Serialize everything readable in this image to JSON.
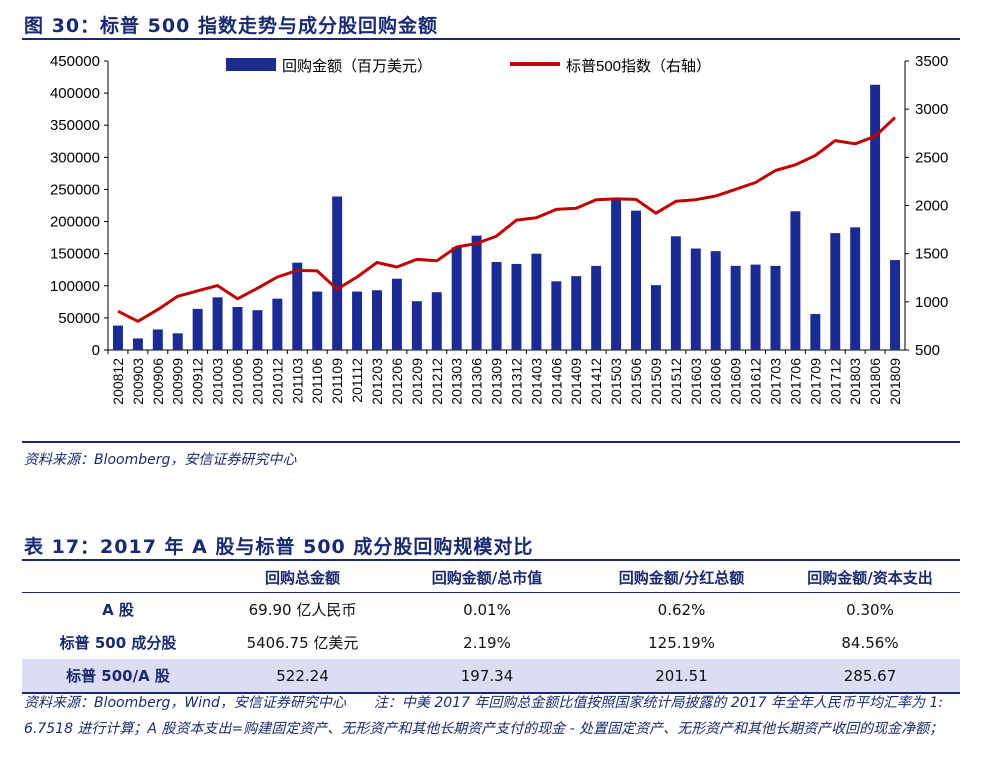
{
  "figure_title": "图 30：标普 500 指数走势与成分股回购金额",
  "figure_source": "资料来源：Bloomberg，安信证券研究中心",
  "chart_data": {
    "type": "bar",
    "categories": [
      "200812",
      "200903",
      "200906",
      "200909",
      "200912",
      "201003",
      "201006",
      "201009",
      "201012",
      "201103",
      "201106",
      "201109",
      "201112",
      "201203",
      "201206",
      "201209",
      "201212",
      "201303",
      "201306",
      "201309",
      "201312",
      "201403",
      "201406",
      "201409",
      "201412",
      "201503",
      "201506",
      "201509",
      "201512",
      "201603",
      "201606",
      "201609",
      "201612",
      "201703",
      "201706",
      "201709",
      "201712",
      "201803",
      "201806",
      "201809"
    ],
    "series": [
      {
        "name": "回购金额（百万美元）",
        "type": "bar",
        "axis": "left",
        "color": "#1c2a94",
        "values": [
          38000,
          18000,
          32000,
          26000,
          64000,
          82000,
          67000,
          62000,
          80000,
          136000,
          91000,
          239000,
          91000,
          93000,
          111000,
          76000,
          90000,
          160000,
          178000,
          137000,
          134000,
          150000,
          107000,
          115000,
          131000,
          235000,
          217000,
          101000,
          177000,
          158000,
          154000,
          131000,
          133000,
          131000,
          216000,
          56000,
          182000,
          191000,
          413000,
          140000
        ]
      },
      {
        "name": "标普500指数（右轴）",
        "type": "line",
        "axis": "right",
        "color": "#c00000",
        "values": [
          903,
          798,
          919,
          1057,
          1115,
          1169,
          1031,
          1141,
          1258,
          1326,
          1321,
          1131,
          1258,
          1408,
          1362,
          1441,
          1426,
          1569,
          1606,
          1682,
          1848,
          1872,
          1960,
          1972,
          2059,
          2068,
          2063,
          1920,
          2044,
          2060,
          2099,
          2168,
          2239,
          2363,
          2423,
          2519,
          2674,
          2641,
          2718,
          2914
        ]
      }
    ],
    "y_left": {
      "min": 0,
      "max": 450000,
      "ticks": [
        0,
        50000,
        100000,
        150000,
        200000,
        250000,
        300000,
        350000,
        400000,
        450000
      ]
    },
    "y_right": {
      "min": 500,
      "max": 3500,
      "ticks": [
        500,
        1000,
        1500,
        2000,
        2500,
        3000,
        3500
      ]
    },
    "legend": "top-center"
  },
  "table": {
    "title": "表 17：2017 年 A 股与标普 500 成分股回购规模对比",
    "headers": [
      "",
      "回购总金额",
      "回购金额/总市值",
      "回购金额/分红总额",
      "回购金额/资本支出"
    ],
    "rows": [
      [
        "A 股",
        "69.90 亿人民币",
        "0.01%",
        "0.62%",
        "0.30%"
      ],
      [
        "标普 500 成分股",
        "5406.75 亿美元",
        "2.19%",
        "125.19%",
        "84.56%"
      ],
      [
        "标普 500/A 股",
        "522.24",
        "197.34",
        "201.51",
        "285.67"
      ]
    ],
    "note": "资料来源：Bloomberg，Wind，安信证券研究中心　　注：中美 2017 年回购总金额比值按照国家统计局披露的 2017 年全年人民币平均汇率为 1: 6.7518 进行计算；A 股资本支出=购建固定资产、无形资产和其他长期资产支付的现金 - 处置固定资产、无形资产和其他长期资产收回的现金净额；"
  }
}
